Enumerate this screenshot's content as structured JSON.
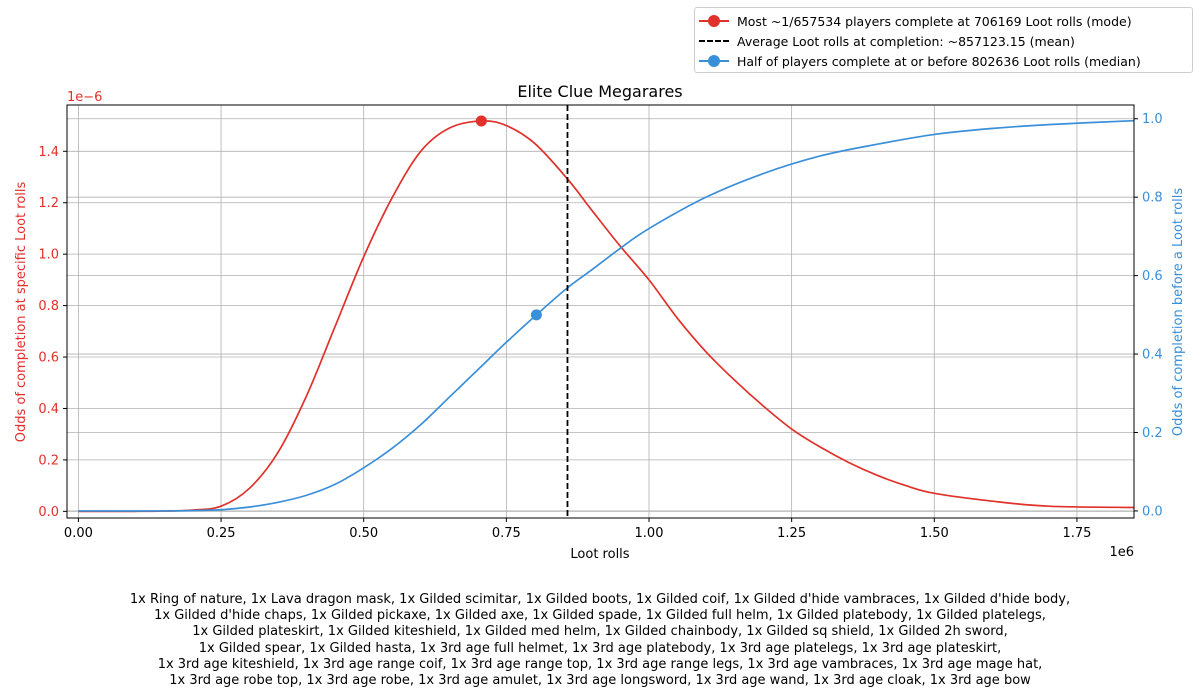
{
  "chart_data": {
    "type": "line",
    "title": "Elite Clue Megarares",
    "xlabel": "Loot rolls",
    "x_offset_label": "1e6",
    "xlim": [
      -20000,
      1850000
    ],
    "x_ticks": [
      0,
      250000,
      500000,
      750000,
      1000000,
      1250000,
      1500000,
      1750000
    ],
    "x_tick_labels": [
      "0.00",
      "0.25",
      "0.50",
      "0.75",
      "1.00",
      "1.25",
      "1.50",
      "1.75"
    ],
    "left_axis": {
      "label": "Odds of completion at specific Loot rolls",
      "offset_label": "1e−6",
      "color": "#e0312a",
      "ylim": [
        -2.59e-08,
        1.58e-06
      ],
      "ticks": [
        0,
        2e-07,
        4e-07,
        6e-07,
        8e-07,
        1e-06,
        1.2e-06,
        1.4e-06
      ],
      "tick_labels": [
        "0.0",
        "0.2",
        "0.4",
        "0.6",
        "0.8",
        "1.0",
        "1.2",
        "1.4"
      ]
    },
    "right_axis": {
      "label": "Odds of completion before a Loot rolls",
      "color": "#3a8fd9",
      "ylim": [
        -0.018,
        1.035
      ],
      "ticks": [
        0,
        0.2,
        0.4,
        0.6,
        0.8,
        1.0
      ],
      "tick_labels": [
        "0.0",
        "0.2",
        "0.4",
        "0.6",
        "0.8",
        "1.0"
      ]
    },
    "grid": true,
    "legend_position": "above top-right",
    "series": [
      {
        "name": "Most ~1/657534 players complete at 706169 Loot rolls (mode)",
        "axis": "left",
        "color": "#e0312a",
        "x": [
          0,
          100000,
          150000,
          200000,
          250000,
          300000,
          350000,
          400000,
          450000,
          500000,
          550000,
          600000,
          650000,
          706169,
          750000,
          800000,
          858000,
          900000,
          950000,
          1000000,
          1050000,
          1100000,
          1150000,
          1200000,
          1250000,
          1300000,
          1350000,
          1400000,
          1450000,
          1500000,
          1600000,
          1700000,
          1850000
        ],
        "y": [
          0,
          0,
          1e-09,
          5e-09,
          2e-08,
          9e-08,
          2.3e-07,
          4.5e-07,
          7.2e-07,
          9.9e-07,
          1.22e-06,
          1.4e-06,
          1.49e-06,
          1.518e-06,
          1.5e-06,
          1.43e-06,
          1.29e-06,
          1.17e-06,
          1.03e-06,
          9e-07,
          7.5e-07,
          6.2e-07,
          5.1e-07,
          4.1e-07,
          3.2e-07,
          2.5e-07,
          1.9e-07,
          1.4e-07,
          1e-07,
          7e-08,
          4e-08,
          2e-08,
          1.5e-08
        ]
      },
      {
        "name": "Half of players complete at or before 802636 Loot rolls (median)",
        "axis": "right",
        "color": "#3a8fd9",
        "x": [
          0,
          150000,
          200000,
          250000,
          300000,
          350000,
          400000,
          450000,
          500000,
          550000,
          600000,
          650000,
          700000,
          750000,
          802636,
          858000,
          900000,
          950000,
          1000000,
          1100000,
          1200000,
          1300000,
          1400000,
          1500000,
          1600000,
          1700000,
          1850000
        ],
        "y": [
          0,
          0,
          0.001,
          0.003,
          0.01,
          0.022,
          0.04,
          0.068,
          0.11,
          0.16,
          0.22,
          0.29,
          0.36,
          0.43,
          0.5,
          0.57,
          0.615,
          0.67,
          0.72,
          0.8,
          0.86,
          0.905,
          0.935,
          0.96,
          0.975,
          0.985,
          0.995
        ]
      }
    ],
    "markers": [
      {
        "series": "mode",
        "x": 706169,
        "y": 1.518e-06,
        "axis": "left",
        "color": "#e0312a"
      },
      {
        "series": "median",
        "x": 802636,
        "y": 0.5,
        "axis": "right",
        "color": "#3a8fd9"
      }
    ],
    "vlines": [
      {
        "name": "Average Loot rolls at completion: ~857123.15 (mean)",
        "x": 857123.15,
        "color": "#000000",
        "style": "dashed"
      }
    ]
  },
  "legend": [
    {
      "label": "Most ~1/657534 players complete at 706169 Loot rolls (mode)",
      "color": "#e0312a",
      "style": "solid-marker"
    },
    {
      "label": "Average Loot rolls at completion: ~857123.15 (mean)",
      "color": "#000000",
      "style": "dashed"
    },
    {
      "label": "Half of players complete at or before 802636 Loot rolls (median)",
      "color": "#3a8fd9",
      "style": "solid-marker"
    }
  ],
  "caption": [
    "1x Ring of nature, 1x Lava dragon mask, 1x Gilded scimitar, 1x Gilded boots, 1x Gilded coif, 1x Gilded d'hide vambraces, 1x Gilded d'hide body,",
    "1x Gilded d'hide chaps, 1x Gilded pickaxe, 1x Gilded axe, 1x Gilded spade, 1x Gilded full helm, 1x Gilded platebody, 1x Gilded platelegs,",
    "1x Gilded plateskirt, 1x Gilded kiteshield, 1x Gilded med helm, 1x Gilded chainbody, 1x Gilded sq shield, 1x Gilded 2h sword,",
    "1x Gilded spear, 1x Gilded hasta, 1x 3rd age full helmet, 1x 3rd age platebody, 1x 3rd age platelegs, 1x 3rd age plateskirt,",
    "1x 3rd age kiteshield, 1x 3rd age range coif, 1x 3rd age range top, 1x 3rd age range legs, 1x 3rd age vambraces, 1x 3rd age mage hat,",
    "1x 3rd age robe top, 1x 3rd age robe, 1x 3rd age amulet, 1x 3rd age longsword, 1x 3rd age wand, 1x 3rd age cloak, 1x 3rd age bow"
  ]
}
